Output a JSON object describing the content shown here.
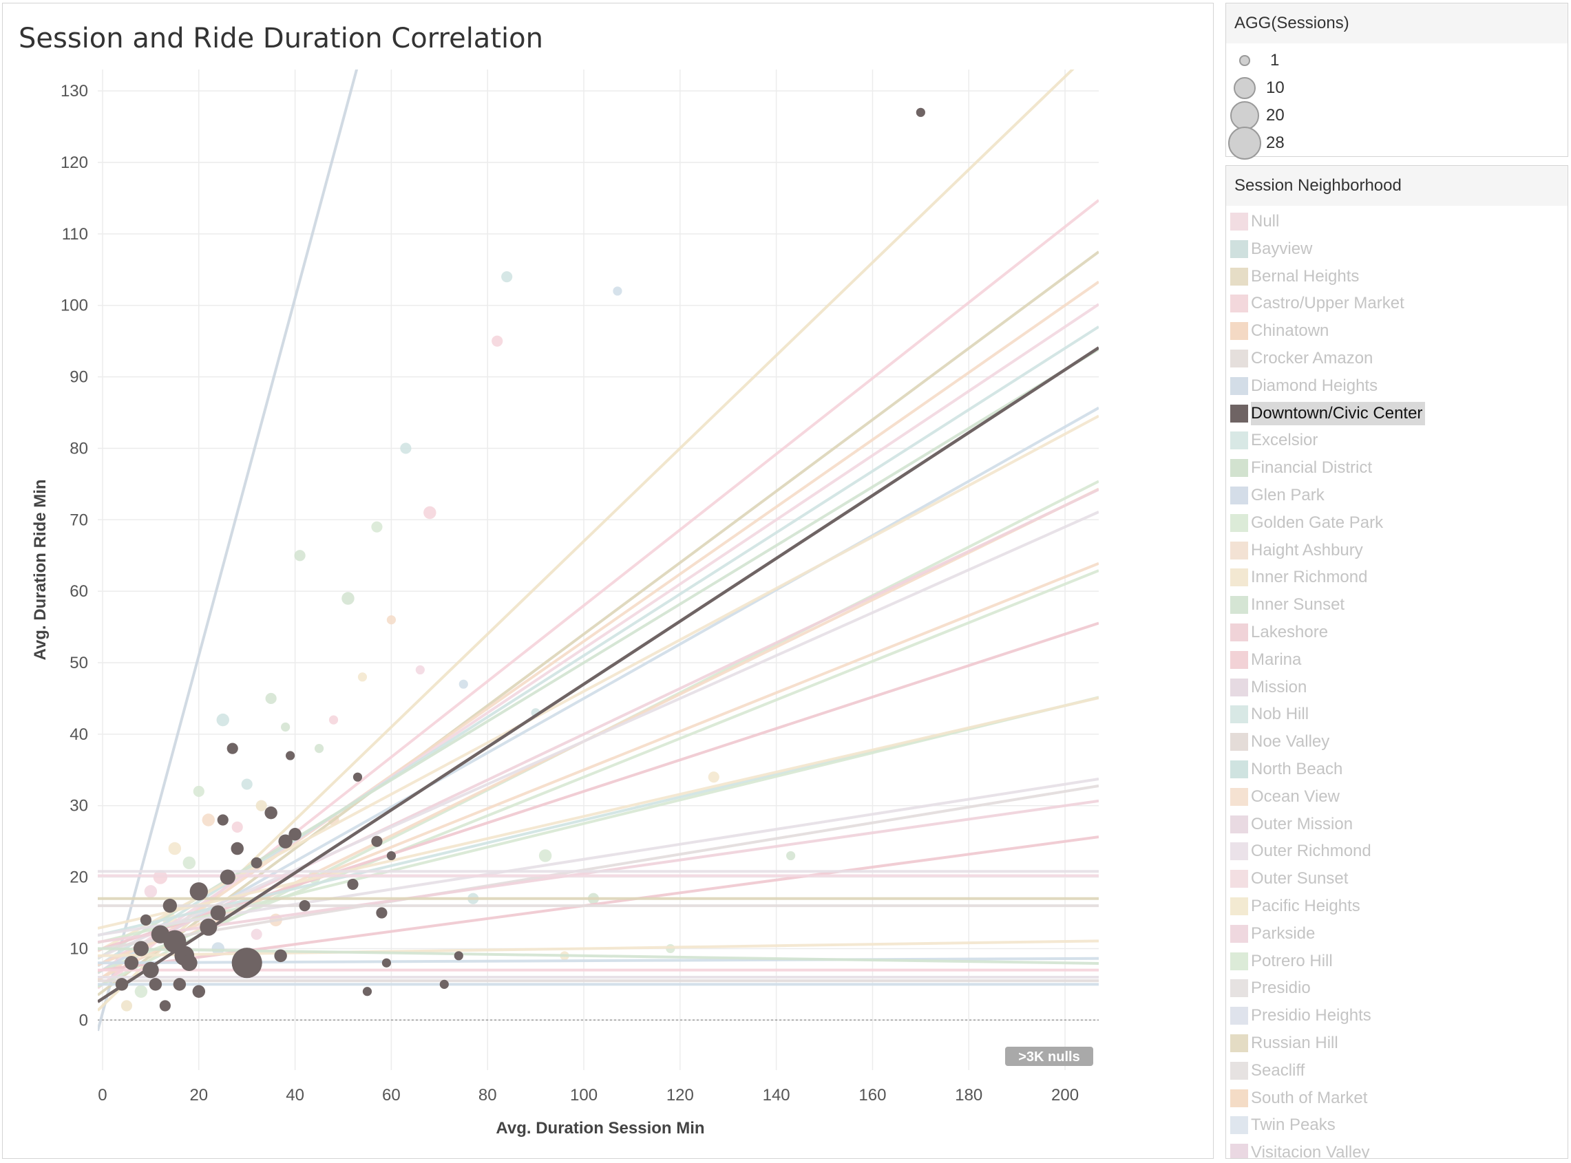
{
  "chart_data": {
    "type": "scatter",
    "title": "Session and Ride Duration Correlation",
    "xlabel": "Avg. Duration Session Min",
    "ylabel": "Avg. Duration Ride Min",
    "xlim": [
      -1,
      207
    ],
    "ylim": [
      -7,
      133
    ],
    "x_ticks": [
      0,
      20,
      40,
      60,
      80,
      100,
      120,
      140,
      160,
      180,
      200
    ],
    "y_ticks": [
      0,
      10,
      20,
      30,
      40,
      50,
      60,
      70,
      80,
      90,
      100,
      110,
      120,
      130
    ],
    "grid": true,
    "highlighted_series": "Downtown/Civic Center",
    "null_badge": ">3K nulls",
    "highlighted_trend": {
      "intercept": 3.0,
      "slope": 0.44,
      "color": "#6f6464"
    },
    "highlighted_points": [
      {
        "x": 30,
        "y": 8,
        "size": 28
      },
      {
        "x": 15,
        "y": 11,
        "size": 14
      },
      {
        "x": 17,
        "y": 9,
        "size": 10
      },
      {
        "x": 12,
        "y": 12,
        "size": 8
      },
      {
        "x": 20,
        "y": 18,
        "size": 8
      },
      {
        "x": 22,
        "y": 13,
        "size": 7
      },
      {
        "x": 18,
        "y": 8,
        "size": 6
      },
      {
        "x": 10,
        "y": 7,
        "size": 6
      },
      {
        "x": 26,
        "y": 20,
        "size": 5
      },
      {
        "x": 24,
        "y": 15,
        "size": 5
      },
      {
        "x": 8,
        "y": 10,
        "size": 5
      },
      {
        "x": 6,
        "y": 8,
        "size": 4
      },
      {
        "x": 38,
        "y": 25,
        "size": 4
      },
      {
        "x": 35,
        "y": 29,
        "size": 3
      },
      {
        "x": 40,
        "y": 26,
        "size": 3
      },
      {
        "x": 28,
        "y": 24,
        "size": 3
      },
      {
        "x": 14,
        "y": 16,
        "size": 4
      },
      {
        "x": 20,
        "y": 4,
        "size": 3
      },
      {
        "x": 13,
        "y": 2,
        "size": 2
      },
      {
        "x": 37,
        "y": 9,
        "size": 3
      },
      {
        "x": 42,
        "y": 16,
        "size": 2
      },
      {
        "x": 25,
        "y": 28,
        "size": 2
      },
      {
        "x": 27,
        "y": 38,
        "size": 2
      },
      {
        "x": 32,
        "y": 22,
        "size": 2
      },
      {
        "x": 4,
        "y": 5,
        "size": 3
      },
      {
        "x": 11,
        "y": 5,
        "size": 3
      },
      {
        "x": 16,
        "y": 5,
        "size": 3
      },
      {
        "x": 9,
        "y": 14,
        "size": 2
      },
      {
        "x": 57,
        "y": 25,
        "size": 2
      },
      {
        "x": 58,
        "y": 15,
        "size": 2
      },
      {
        "x": 52,
        "y": 19,
        "size": 2
      },
      {
        "x": 53,
        "y": 34,
        "size": 1
      },
      {
        "x": 39,
        "y": 37,
        "size": 1
      },
      {
        "x": 60,
        "y": 23,
        "size": 1
      },
      {
        "x": 55,
        "y": 4,
        "size": 1
      },
      {
        "x": 71,
        "y": 5,
        "size": 1
      },
      {
        "x": 74,
        "y": 9,
        "size": 1
      },
      {
        "x": 59,
        "y": 8,
        "size": 1
      },
      {
        "x": 170,
        "y": 127,
        "size": 1
      }
    ],
    "other_trends": [
      {
        "intercept": 1,
        "slope": 2.5,
        "color": "#ccd6e0"
      },
      {
        "intercept": 2,
        "slope": 0.65,
        "color": "#efe3c8"
      },
      {
        "intercept": 5,
        "slope": 0.53,
        "color": "#f5d3da"
      },
      {
        "intercept": 4,
        "slope": 0.5,
        "color": "#ddd5b8"
      },
      {
        "intercept": 6,
        "slope": 0.47,
        "color": "#f5dcc8"
      },
      {
        "intercept": 7,
        "slope": 0.45,
        "color": "#f2d7e0"
      },
      {
        "intercept": 8,
        "slope": 0.43,
        "color": "#cfe3e2"
      },
      {
        "intercept": 9,
        "slope": 0.41,
        "color": "#d2e3d0"
      },
      {
        "intercept": 7,
        "slope": 0.38,
        "color": "#cfdde8"
      },
      {
        "intercept": 10,
        "slope": 0.36,
        "color": "#f3e6cd"
      },
      {
        "intercept": 5,
        "slope": 0.34,
        "color": "#d7e8d3"
      },
      {
        "intercept": 6,
        "slope": 0.33,
        "color": "#f5dcc8"
      },
      {
        "intercept": 8,
        "slope": 0.32,
        "color": "#efd2da"
      },
      {
        "intercept": 9,
        "slope": 0.3,
        "color": "#e5dfe5"
      },
      {
        "intercept": 7,
        "slope": 0.27,
        "color": "#d7e8d3"
      },
      {
        "intercept": 8,
        "slope": 0.27,
        "color": "#f5dcc8"
      },
      {
        "intercept": 10,
        "slope": 0.22,
        "color": "#f0c8cf"
      },
      {
        "intercept": 12,
        "slope": 0.16,
        "color": "#cfe3e2"
      },
      {
        "intercept": 11,
        "slope": 0.165,
        "color": "#d7e8d3"
      },
      {
        "intercept": 13,
        "slope": 0.155,
        "color": "#f3e6cd"
      },
      {
        "intercept": 12,
        "slope": 0.105,
        "color": "#e5dfe5"
      },
      {
        "intercept": 10,
        "slope": 0.11,
        "color": "#e2dcdc"
      },
      {
        "intercept": 11,
        "slope": 0.095,
        "color": "#efd2da"
      },
      {
        "intercept": 7,
        "slope": 0.09,
        "color": "#f0c8cf"
      },
      {
        "intercept": 20.8,
        "slope": 0,
        "color": "#e5dfe5"
      },
      {
        "intercept": 20.2,
        "slope": 0,
        "color": "#f2d7e0"
      },
      {
        "intercept": 17,
        "slope": 0,
        "color": "#ddd5b8"
      },
      {
        "intercept": 16,
        "slope": 0,
        "color": "#e2dcdc"
      },
      {
        "intercept": 9,
        "slope": 0.01,
        "color": "#f3e6cd"
      },
      {
        "intercept": 8,
        "slope": 0.003,
        "color": "#cfdde8"
      },
      {
        "intercept": 7,
        "slope": 0,
        "color": "#f5d3da"
      },
      {
        "intercept": 6,
        "slope": 0,
        "color": "#e5dfe5"
      },
      {
        "intercept": 5,
        "slope": 0,
        "color": "#cfdde8"
      },
      {
        "intercept": 5.5,
        "slope": 0,
        "color": "#e2dcdc"
      },
      {
        "intercept": 10,
        "slope": -0.01,
        "color": "#d2e3d0"
      }
    ],
    "other_points": [
      {
        "x": 84,
        "y": 104,
        "size": 2,
        "color": "#cfe3e2"
      },
      {
        "x": 82,
        "y": 95,
        "size": 2,
        "color": "#f5d3da"
      },
      {
        "x": 107,
        "y": 102,
        "size": 1,
        "color": "#cfdde8"
      },
      {
        "x": 63,
        "y": 80,
        "size": 2,
        "color": "#cfe3e2"
      },
      {
        "x": 68,
        "y": 71,
        "size": 3,
        "color": "#f5d3da"
      },
      {
        "x": 57,
        "y": 69,
        "size": 2,
        "color": "#d7e8d3"
      },
      {
        "x": 41,
        "y": 65,
        "size": 2,
        "color": "#d2e3d0"
      },
      {
        "x": 51,
        "y": 59,
        "size": 3,
        "color": "#d2e3d0"
      },
      {
        "x": 25,
        "y": 42,
        "size": 3,
        "color": "#cfe3e2"
      },
      {
        "x": 35,
        "y": 45,
        "size": 2,
        "color": "#d2e3d0"
      },
      {
        "x": 92,
        "y": 23,
        "size": 3,
        "color": "#d7e8d3"
      },
      {
        "x": 127,
        "y": 34,
        "size": 2,
        "color": "#f3e6cd"
      },
      {
        "x": 143,
        "y": 23,
        "size": 1,
        "color": "#d2e3d0"
      },
      {
        "x": 20,
        "y": 32,
        "size": 2,
        "color": "#d7e8d3"
      },
      {
        "x": 22,
        "y": 28,
        "size": 3,
        "color": "#f5dcc8"
      },
      {
        "x": 15,
        "y": 24,
        "size": 3,
        "color": "#f3e6cd"
      },
      {
        "x": 12,
        "y": 20,
        "size": 4,
        "color": "#f5d3da"
      },
      {
        "x": 18,
        "y": 22,
        "size": 3,
        "color": "#d7e8d3"
      },
      {
        "x": 10,
        "y": 18,
        "size": 3,
        "color": "#f2d7e0"
      },
      {
        "x": 30,
        "y": 33,
        "size": 2,
        "color": "#cfe3e2"
      },
      {
        "x": 33,
        "y": 30,
        "size": 2,
        "color": "#efe3c8"
      },
      {
        "x": 28,
        "y": 27,
        "size": 2,
        "color": "#f5d3da"
      },
      {
        "x": 45,
        "y": 38,
        "size": 1,
        "color": "#d2e3d0"
      },
      {
        "x": 48,
        "y": 42,
        "size": 1,
        "color": "#f5d3da"
      },
      {
        "x": 60,
        "y": 56,
        "size": 1,
        "color": "#f5dcc8"
      },
      {
        "x": 66,
        "y": 49,
        "size": 1,
        "color": "#f2d7e0"
      },
      {
        "x": 77,
        "y": 17,
        "size": 2,
        "color": "#cfe3e2"
      },
      {
        "x": 102,
        "y": 17,
        "size": 2,
        "color": "#d2e3d0"
      },
      {
        "x": 36,
        "y": 14,
        "size": 3,
        "color": "#f5dcc8"
      },
      {
        "x": 44,
        "y": 20,
        "size": 3,
        "color": "#d7e8d3"
      },
      {
        "x": 8,
        "y": 4,
        "size": 3,
        "color": "#d7e8d3"
      },
      {
        "x": 5,
        "y": 2,
        "size": 2,
        "color": "#efe3c8"
      },
      {
        "x": 3,
        "y": 7,
        "size": 3,
        "color": "#f5d3da"
      },
      {
        "x": 14,
        "y": 14,
        "size": 4,
        "color": "#f3e6cd"
      },
      {
        "x": 24,
        "y": 10,
        "size": 3,
        "color": "#cfdde8"
      },
      {
        "x": 32,
        "y": 12,
        "size": 2,
        "color": "#f2d7e0"
      },
      {
        "x": 48,
        "y": 28,
        "size": 2,
        "color": "#f5dcc8"
      },
      {
        "x": 38,
        "y": 41,
        "size": 1,
        "color": "#d2e3d0"
      },
      {
        "x": 54,
        "y": 48,
        "size": 1,
        "color": "#f3e6cd"
      },
      {
        "x": 90,
        "y": 43,
        "size": 1,
        "color": "#cfe3e2"
      },
      {
        "x": 96,
        "y": 9,
        "size": 1,
        "color": "#f3e6cd"
      },
      {
        "x": 118,
        "y": 10,
        "size": 1,
        "color": "#d7e8d3"
      },
      {
        "x": 75,
        "y": 47,
        "size": 1,
        "color": "#cfdde8"
      }
    ]
  },
  "legends": {
    "size": {
      "title": "AGG(Sessions)",
      "items": [
        {
          "label": "1",
          "size": 1
        },
        {
          "label": "10",
          "size": 10
        },
        {
          "label": "20",
          "size": 20
        },
        {
          "label": "28",
          "size": 28
        }
      ]
    },
    "color": {
      "title": "Session Neighborhood",
      "items": [
        {
          "label": "Null",
          "color": "#f2dde2"
        },
        {
          "label": "Bayview",
          "color": "#cfe0de"
        },
        {
          "label": "Bernal Heights",
          "color": "#e6ddc6"
        },
        {
          "label": "Castro/Upper Market",
          "color": "#f3d8dc"
        },
        {
          "label": "Chinatown",
          "color": "#f4d9c4"
        },
        {
          "label": "Crocker Amazon",
          "color": "#e5dfdc"
        },
        {
          "label": "Diamond Heights",
          "color": "#d3dde7"
        },
        {
          "label": "Downtown/Civic Center",
          "color": "#6f6464"
        },
        {
          "label": "Excelsior",
          "color": "#d8e8e5"
        },
        {
          "label": "Financial District",
          "color": "#d2e2cf"
        },
        {
          "label": "Glen Park",
          "color": "#d4dde8"
        },
        {
          "label": "Golden Gate Park",
          "color": "#dcebd8"
        },
        {
          "label": "Haight Ashbury",
          "color": "#f3e2d4"
        },
        {
          "label": "Inner Richmond",
          "color": "#f3e8d2"
        },
        {
          "label": "Inner Sunset",
          "color": "#d5e5d4"
        },
        {
          "label": "Lakeshore",
          "color": "#f0d3d8"
        },
        {
          "label": "Marina",
          "color": "#f2d2d6"
        },
        {
          "label": "Mission",
          "color": "#e6dae2"
        },
        {
          "label": "Nob Hill",
          "color": "#d8e8e5"
        },
        {
          "label": "Noe Valley",
          "color": "#e4dcd8"
        },
        {
          "label": "North Beach",
          "color": "#cfe3e0"
        },
        {
          "label": "Ocean View",
          "color": "#f5e2d2"
        },
        {
          "label": "Outer Mission",
          "color": "#e9dae2"
        },
        {
          "label": "Outer Richmond",
          "color": "#ebe2e9"
        },
        {
          "label": "Outer Sunset",
          "color": "#f3dfe2"
        },
        {
          "label": "Pacific Heights",
          "color": "#f3ead2"
        },
        {
          "label": "Parkside",
          "color": "#efd8df"
        },
        {
          "label": "Potrero Hill",
          "color": "#dcebd8"
        },
        {
          "label": "Presidio",
          "color": "#e6e2e1"
        },
        {
          "label": "Presidio Heights",
          "color": "#dfe3ec"
        },
        {
          "label": "Russian Hill",
          "color": "#e4dcc4"
        },
        {
          "label": "Seacliff",
          "color": "#e6e2e1"
        },
        {
          "label": "South of Market",
          "color": "#f4dcc6"
        },
        {
          "label": "Twin Peaks",
          "color": "#dfe6ee"
        },
        {
          "label": "Visitacion Valley",
          "color": "#ead8e2"
        }
      ]
    }
  }
}
